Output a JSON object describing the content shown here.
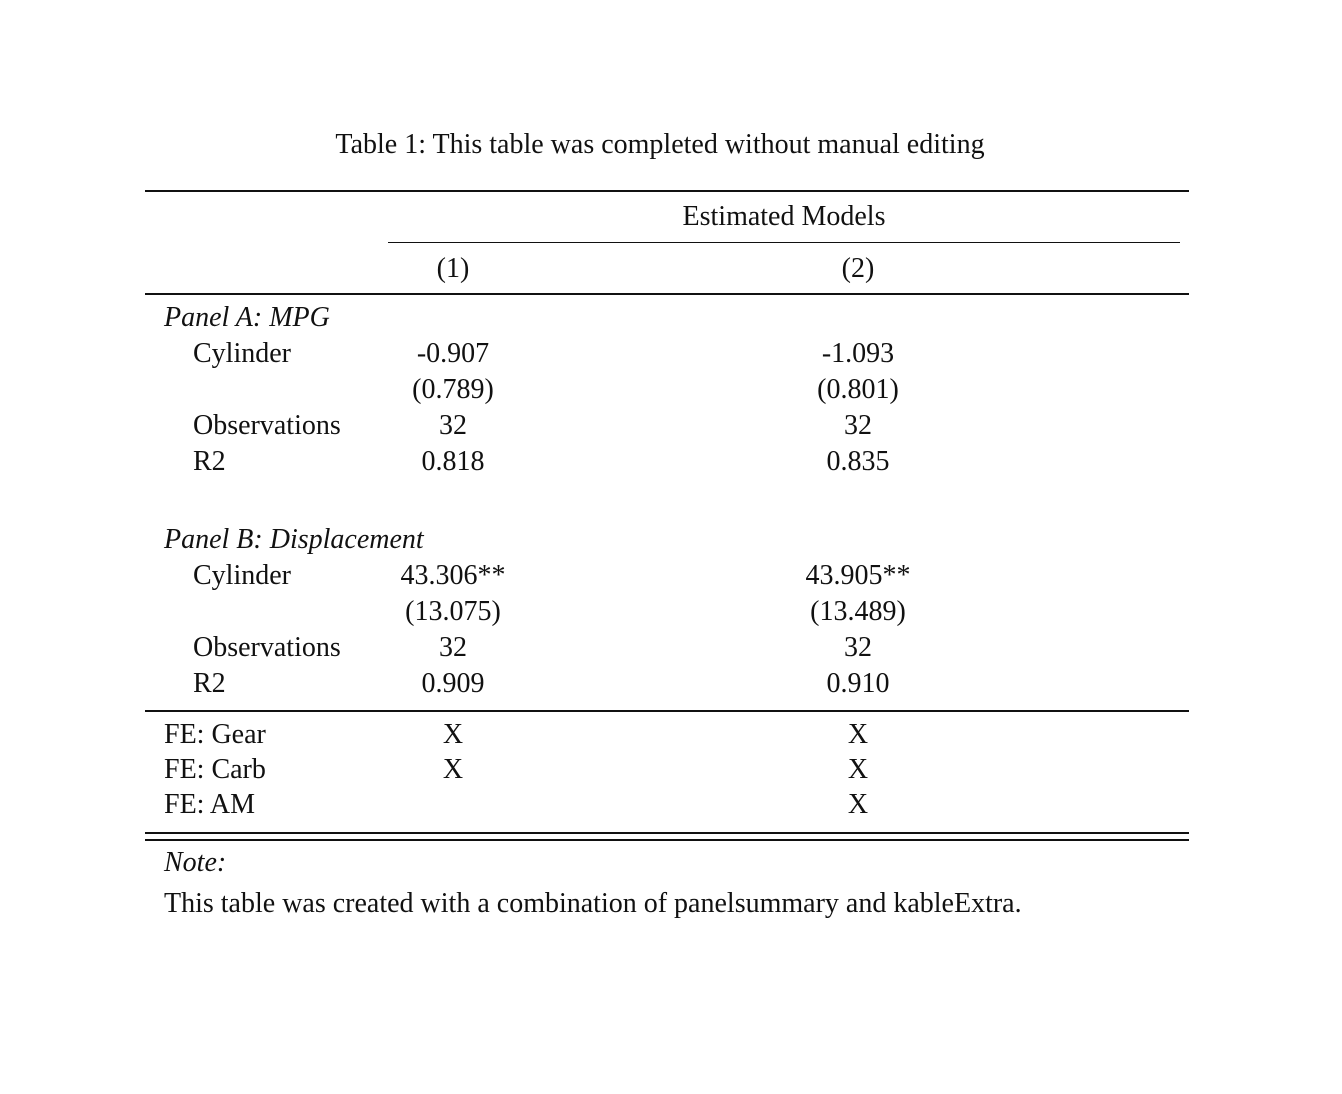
{
  "caption": "Table 1: This table was completed without manual editing",
  "header": {
    "group": "Estimated Models",
    "columns": [
      "(1)",
      "(2)"
    ]
  },
  "panels": [
    {
      "title": "Panel A: MPG",
      "rows": [
        {
          "label": "Cylinder",
          "values": [
            "-0.907",
            "-1.093"
          ]
        },
        {
          "label": "",
          "values": [
            "(0.789)",
            "(0.801)"
          ]
        },
        {
          "label": "Observations",
          "values": [
            "32",
            "32"
          ]
        },
        {
          "label": "R2",
          "values": [
            "0.818",
            "0.835"
          ]
        }
      ]
    },
    {
      "title": "Panel B: Displacement",
      "rows": [
        {
          "label": "Cylinder",
          "values": [
            "43.306**",
            "43.905**"
          ]
        },
        {
          "label": "",
          "values": [
            "(13.075)",
            "(13.489)"
          ]
        },
        {
          "label": "Observations",
          "values": [
            "32",
            "32"
          ]
        },
        {
          "label": "R2",
          "values": [
            "0.909",
            "0.910"
          ]
        }
      ]
    }
  ],
  "fixed_effects": [
    {
      "label": "FE: Gear",
      "values": [
        "X",
        "X"
      ]
    },
    {
      "label": "FE: Carb",
      "values": [
        "X",
        "X"
      ]
    },
    {
      "label": "FE: AM",
      "values": [
        "",
        "X"
      ]
    }
  ],
  "note": {
    "title": "Note:",
    "text": "This table was created with a combination of panelsummary and kableExtra."
  }
}
